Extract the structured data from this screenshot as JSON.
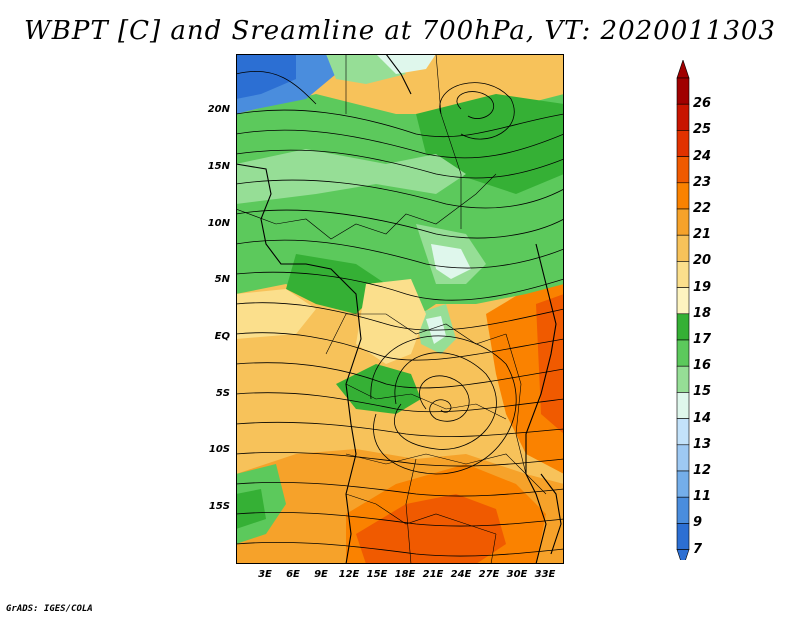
{
  "title": "WBPT [C] and Sreamline at 700hPa, VT: 2020011303",
  "footer": "GrADS: IGES/COLA",
  "map": {
    "lat_labels": [
      "20N",
      "15N",
      "10N",
      "5N",
      "EQ",
      "5S",
      "10S",
      "15S"
    ],
    "lon_labels": [
      "3E",
      "6E",
      "9E",
      "12E",
      "15E",
      "18E",
      "21E",
      "24E",
      "27E",
      "30E",
      "33E"
    ]
  },
  "colorbar": {
    "labels": [
      "26",
      "25",
      "24",
      "23",
      "22",
      "21",
      "20",
      "19",
      "18",
      "17",
      "16",
      "15",
      "14",
      "13",
      "12",
      "11",
      "9",
      "7"
    ],
    "colors": [
      "#a00000",
      "#c81400",
      "#e13200",
      "#f05a00",
      "#fa8200",
      "#f6a22a",
      "#f7c25a",
      "#fbdf8c",
      "#fdf4c0",
      "#35b035",
      "#5cc95c",
      "#96de96",
      "#dff7ec",
      "#c3e2fa",
      "#9ec9f3",
      "#74aeea",
      "#4a8ddd",
      "#2c6fd3"
    ]
  },
  "regions": {
    "ocean_colors": {
      "top": "#2c6fd3",
      "light": "#96de96",
      "land_green": "#5cc95c",
      "orange": "#fa8200"
    }
  }
}
